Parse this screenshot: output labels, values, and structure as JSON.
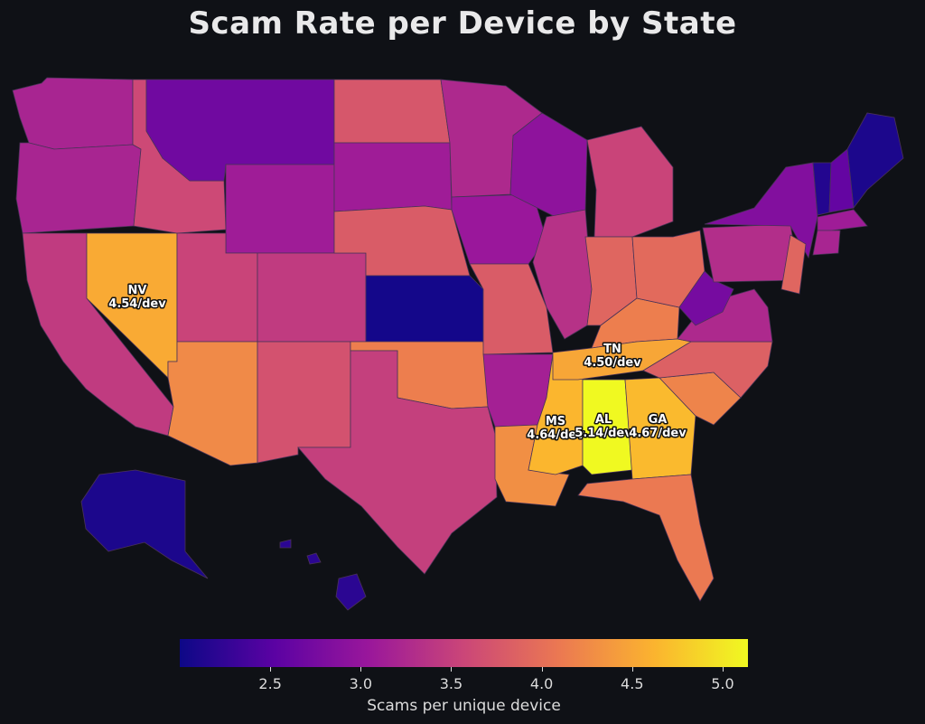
{
  "title": "Scam Rate per Device by State",
  "colorbar": {
    "label": "Scams per unique device",
    "min": 2.0,
    "max": 5.14,
    "ticks": [
      "2.5",
      "3.0",
      "3.5",
      "4.0",
      "4.5",
      "5.0"
    ],
    "colors": [
      "#0d0887",
      "#5b02a3",
      "#9a179b",
      "#cb4678",
      "#eb7852",
      "#fbb32f",
      "#f0f921"
    ]
  },
  "states": {
    "WA": 3.2,
    "OR": 3.2,
    "CA": 3.45,
    "NV": 4.54,
    "ID": 3.6,
    "MT": 2.7,
    "WY": 3.1,
    "UT": 3.55,
    "AZ": 4.25,
    "CO": 3.45,
    "NM": 3.7,
    "ND": 3.75,
    "SD": 3.1,
    "NE": 3.8,
    "KS": 2.05,
    "OK": 4.15,
    "TX": 3.5,
    "MN": 3.25,
    "IA": 3.05,
    "MO": 3.8,
    "AR": 3.15,
    "LA": 4.3,
    "WI": 2.95,
    "IL": 3.35,
    "MS": 4.64,
    "MI": 3.55,
    "IN": 3.9,
    "KY": 4.15,
    "TN": 4.5,
    "AL": 5.14,
    "OH": 3.95,
    "GA": 4.67,
    "FL": 4.1,
    "SC": 4.2,
    "NC": 3.85,
    "VA": 3.25,
    "WV": 2.75,
    "PA": 3.3,
    "NY": 2.85,
    "ME": 2.1,
    "VT": 2.15,
    "NH": 2.6,
    "MA": 3.1,
    "CT": 3.2,
    "NJ": 3.9,
    "AK": 2.1,
    "HI": 2.2
  },
  "labels": [
    {
      "state": "NV",
      "line1": "NV",
      "line2": "4.54/dev"
    },
    {
      "state": "TN",
      "line1": "TN",
      "line2": "4.50/dev"
    },
    {
      "state": "MS",
      "line1": "MS",
      "line2": "4.64/dev"
    },
    {
      "state": "AL",
      "line1": "AL",
      "line2": "5.14/dev"
    },
    {
      "state": "GA",
      "line1": "GA",
      "line2": "4.67/dev"
    }
  ]
}
